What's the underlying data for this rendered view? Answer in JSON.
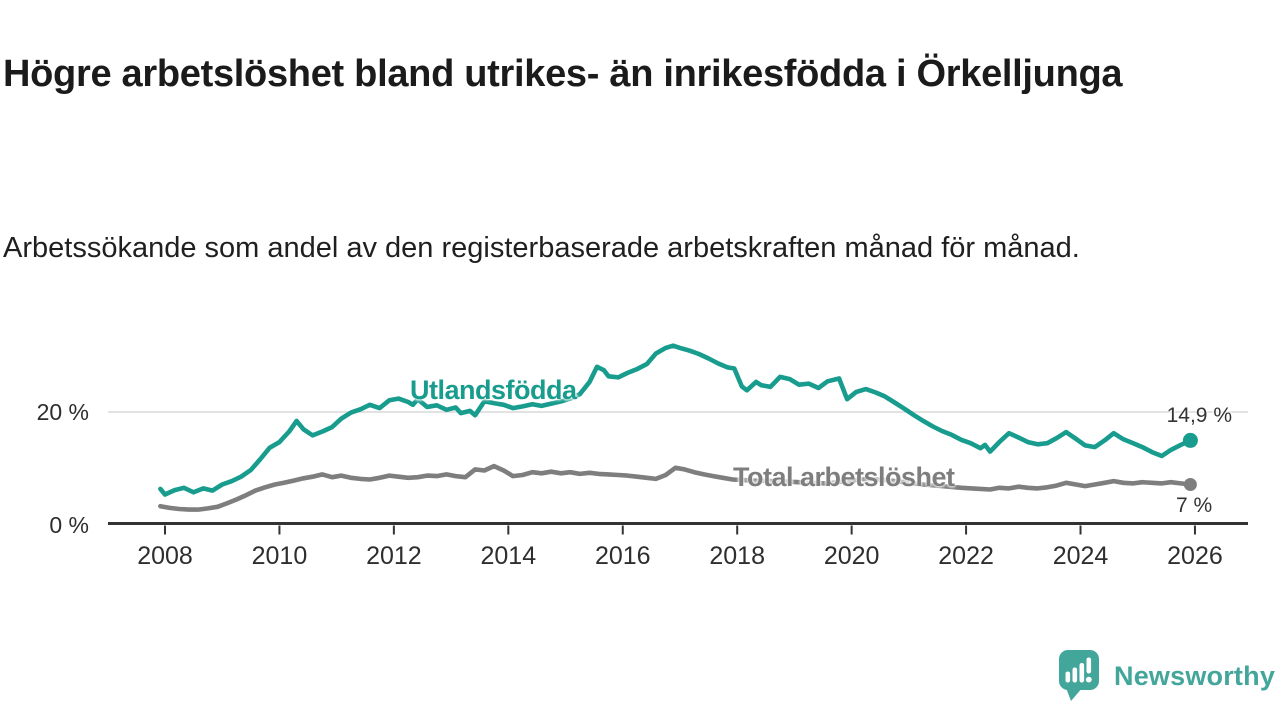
{
  "header": {
    "title": "Högre arbetslöshet bland utrikes- än inrikesfödda i Örkelljunga",
    "subtitle": "Arbetssökande som andel av den registerbaserade arbetskraften månad för månad."
  },
  "chart_data": {
    "type": "line",
    "unit": "%",
    "xlabel": "",
    "ylabel": "",
    "ylim": [
      0,
      33
    ],
    "xlim": [
      2007.9,
      2026.9
    ],
    "x_ticks": [
      2008,
      2010,
      2012,
      2014,
      2016,
      2018,
      2020,
      2022,
      2024,
      2026
    ],
    "y_tick_labels": [
      "20 %",
      "0 %"
    ],
    "gridlines": [
      20
    ],
    "grid_color": "#d8d8d8",
    "axis_color": "#333333",
    "legend_position": "inline-labels",
    "series": [
      {
        "name": "Utlandsfödda",
        "color": "#189c8e",
        "end_label": "14,9 %",
        "end_value": 14.9,
        "points": [
          [
            2007.92,
            6.2
          ],
          [
            2008.0,
            5.2
          ],
          [
            2008.17,
            6.0
          ],
          [
            2008.33,
            6.4
          ],
          [
            2008.5,
            5.6
          ],
          [
            2008.67,
            6.3
          ],
          [
            2008.83,
            5.9
          ],
          [
            2009.0,
            7.0
          ],
          [
            2009.17,
            7.6
          ],
          [
            2009.33,
            8.4
          ],
          [
            2009.5,
            9.6
          ],
          [
            2009.67,
            11.6
          ],
          [
            2009.83,
            13.6
          ],
          [
            2010.0,
            14.6
          ],
          [
            2010.17,
            16.5
          ],
          [
            2010.3,
            18.4
          ],
          [
            2010.42,
            16.9
          ],
          [
            2010.58,
            15.8
          ],
          [
            2010.75,
            16.5
          ],
          [
            2010.92,
            17.3
          ],
          [
            2011.08,
            18.8
          ],
          [
            2011.25,
            19.9
          ],
          [
            2011.42,
            20.5
          ],
          [
            2011.58,
            21.3
          ],
          [
            2011.75,
            20.7
          ],
          [
            2011.92,
            22.1
          ],
          [
            2012.08,
            22.4
          ],
          [
            2012.25,
            21.8
          ],
          [
            2012.33,
            21.3
          ],
          [
            2012.42,
            22.3
          ],
          [
            2012.58,
            20.9
          ],
          [
            2012.75,
            21.2
          ],
          [
            2012.92,
            20.4
          ],
          [
            2013.08,
            20.8
          ],
          [
            2013.17,
            19.8
          ],
          [
            2013.33,
            20.2
          ],
          [
            2013.42,
            19.4
          ],
          [
            2013.58,
            21.9
          ],
          [
            2013.75,
            21.6
          ],
          [
            2013.92,
            21.3
          ],
          [
            2014.08,
            20.7
          ],
          [
            2014.25,
            21.0
          ],
          [
            2014.42,
            21.4
          ],
          [
            2014.58,
            21.1
          ],
          [
            2014.75,
            21.5
          ],
          [
            2014.92,
            21.9
          ],
          [
            2015.08,
            22.4
          ],
          [
            2015.25,
            23.2
          ],
          [
            2015.42,
            25.4
          ],
          [
            2015.55,
            28.1
          ],
          [
            2015.67,
            27.5
          ],
          [
            2015.75,
            26.4
          ],
          [
            2015.92,
            26.2
          ],
          [
            2016.08,
            27.0
          ],
          [
            2016.25,
            27.7
          ],
          [
            2016.42,
            28.6
          ],
          [
            2016.58,
            30.5
          ],
          [
            2016.75,
            31.5
          ],
          [
            2016.88,
            31.9
          ],
          [
            2017.0,
            31.5
          ],
          [
            2017.17,
            31.0
          ],
          [
            2017.33,
            30.4
          ],
          [
            2017.5,
            29.6
          ],
          [
            2017.67,
            28.7
          ],
          [
            2017.83,
            28.0
          ],
          [
            2017.95,
            27.8
          ],
          [
            2018.08,
            24.6
          ],
          [
            2018.17,
            23.9
          ],
          [
            2018.33,
            25.4
          ],
          [
            2018.42,
            24.8
          ],
          [
            2018.58,
            24.5
          ],
          [
            2018.75,
            26.3
          ],
          [
            2018.92,
            25.9
          ],
          [
            2019.08,
            24.9
          ],
          [
            2019.25,
            25.1
          ],
          [
            2019.42,
            24.3
          ],
          [
            2019.58,
            25.5
          ],
          [
            2019.78,
            26.0
          ],
          [
            2019.92,
            22.3
          ],
          [
            2020.08,
            23.6
          ],
          [
            2020.25,
            24.1
          ],
          [
            2020.42,
            23.5
          ],
          [
            2020.58,
            22.8
          ],
          [
            2020.75,
            21.7
          ],
          [
            2020.92,
            20.6
          ],
          [
            2021.08,
            19.5
          ],
          [
            2021.25,
            18.4
          ],
          [
            2021.42,
            17.4
          ],
          [
            2021.58,
            16.6
          ],
          [
            2021.75,
            15.9
          ],
          [
            2021.92,
            15.0
          ],
          [
            2022.08,
            14.4
          ],
          [
            2022.25,
            13.5
          ],
          [
            2022.33,
            14.1
          ],
          [
            2022.42,
            12.9
          ],
          [
            2022.58,
            14.6
          ],
          [
            2022.75,
            16.2
          ],
          [
            2022.92,
            15.4
          ],
          [
            2023.08,
            14.6
          ],
          [
            2023.25,
            14.2
          ],
          [
            2023.42,
            14.4
          ],
          [
            2023.58,
            15.3
          ],
          [
            2023.75,
            16.4
          ],
          [
            2023.92,
            15.2
          ],
          [
            2024.08,
            14.0
          ],
          [
            2024.25,
            13.7
          ],
          [
            2024.42,
            14.9
          ],
          [
            2024.58,
            16.2
          ],
          [
            2024.75,
            15.1
          ],
          [
            2024.92,
            14.4
          ],
          [
            2025.08,
            13.7
          ],
          [
            2025.25,
            12.8
          ],
          [
            2025.42,
            12.1
          ],
          [
            2025.58,
            13.2
          ],
          [
            2025.75,
            14.1
          ],
          [
            2025.92,
            14.9
          ]
        ]
      },
      {
        "name": "Total arbetslöshet",
        "color": "#7e7e7e",
        "end_label": "7 %",
        "end_value": 7.0,
        "points": [
          [
            2007.92,
            3.1
          ],
          [
            2008.08,
            2.8
          ],
          [
            2008.25,
            2.6
          ],
          [
            2008.42,
            2.5
          ],
          [
            2008.58,
            2.5
          ],
          [
            2008.75,
            2.7
          ],
          [
            2008.92,
            3.0
          ],
          [
            2009.08,
            3.6
          ],
          [
            2009.25,
            4.3
          ],
          [
            2009.42,
            5.1
          ],
          [
            2009.58,
            5.9
          ],
          [
            2009.75,
            6.5
          ],
          [
            2009.92,
            7.0
          ],
          [
            2010.08,
            7.3
          ],
          [
            2010.25,
            7.7
          ],
          [
            2010.42,
            8.1
          ],
          [
            2010.58,
            8.4
          ],
          [
            2010.75,
            8.8
          ],
          [
            2010.92,
            8.3
          ],
          [
            2011.08,
            8.6
          ],
          [
            2011.25,
            8.2
          ],
          [
            2011.42,
            8.0
          ],
          [
            2011.58,
            7.9
          ],
          [
            2011.75,
            8.2
          ],
          [
            2011.92,
            8.6
          ],
          [
            2012.08,
            8.4
          ],
          [
            2012.25,
            8.2
          ],
          [
            2012.42,
            8.3
          ],
          [
            2012.58,
            8.6
          ],
          [
            2012.75,
            8.5
          ],
          [
            2012.92,
            8.8
          ],
          [
            2013.08,
            8.5
          ],
          [
            2013.25,
            8.3
          ],
          [
            2013.42,
            9.7
          ],
          [
            2013.58,
            9.5
          ],
          [
            2013.75,
            10.3
          ],
          [
            2013.92,
            9.5
          ],
          [
            2014.08,
            8.5
          ],
          [
            2014.25,
            8.7
          ],
          [
            2014.42,
            9.2
          ],
          [
            2014.58,
            9.0
          ],
          [
            2014.75,
            9.3
          ],
          [
            2014.92,
            9.0
          ],
          [
            2015.08,
            9.2
          ],
          [
            2015.25,
            8.9
          ],
          [
            2015.42,
            9.1
          ],
          [
            2015.58,
            8.9
          ],
          [
            2015.75,
            8.8
          ],
          [
            2015.92,
            8.7
          ],
          [
            2016.08,
            8.6
          ],
          [
            2016.25,
            8.4
          ],
          [
            2016.42,
            8.2
          ],
          [
            2016.58,
            8.0
          ],
          [
            2016.75,
            8.7
          ],
          [
            2016.92,
            10.0
          ],
          [
            2017.08,
            9.7
          ],
          [
            2017.25,
            9.2
          ],
          [
            2017.42,
            8.8
          ],
          [
            2017.58,
            8.5
          ],
          [
            2017.75,
            8.2
          ],
          [
            2017.92,
            7.9
          ],
          [
            2018.25,
            7.7
          ],
          [
            2018.58,
            7.6
          ],
          [
            2018.92,
            7.5
          ],
          [
            2019.25,
            7.3
          ],
          [
            2019.58,
            7.2
          ],
          [
            2019.92,
            7.6
          ],
          [
            2020.25,
            8.0
          ],
          [
            2020.58,
            7.8
          ],
          [
            2020.92,
            7.4
          ],
          [
            2021.25,
            7.0
          ],
          [
            2021.58,
            6.7
          ],
          [
            2021.92,
            6.4
          ],
          [
            2022.25,
            6.2
          ],
          [
            2022.42,
            6.1
          ],
          [
            2022.58,
            6.4
          ],
          [
            2022.75,
            6.3
          ],
          [
            2022.92,
            6.6
          ],
          [
            2023.08,
            6.4
          ],
          [
            2023.25,
            6.3
          ],
          [
            2023.42,
            6.5
          ],
          [
            2023.58,
            6.8
          ],
          [
            2023.75,
            7.3
          ],
          [
            2023.92,
            7.0
          ],
          [
            2024.08,
            6.7
          ],
          [
            2024.25,
            7.0
          ],
          [
            2024.42,
            7.3
          ],
          [
            2024.58,
            7.6
          ],
          [
            2024.75,
            7.3
          ],
          [
            2024.92,
            7.2
          ],
          [
            2025.08,
            7.4
          ],
          [
            2025.25,
            7.3
          ],
          [
            2025.42,
            7.2
          ],
          [
            2025.58,
            7.4
          ],
          [
            2025.75,
            7.2
          ],
          [
            2025.92,
            7.0
          ]
        ]
      }
    ]
  },
  "footer": {
    "brand": "Newsworthy",
    "brand_color": "#43a69a",
    "logo_icon": "bar-chart-speech-bubble"
  }
}
